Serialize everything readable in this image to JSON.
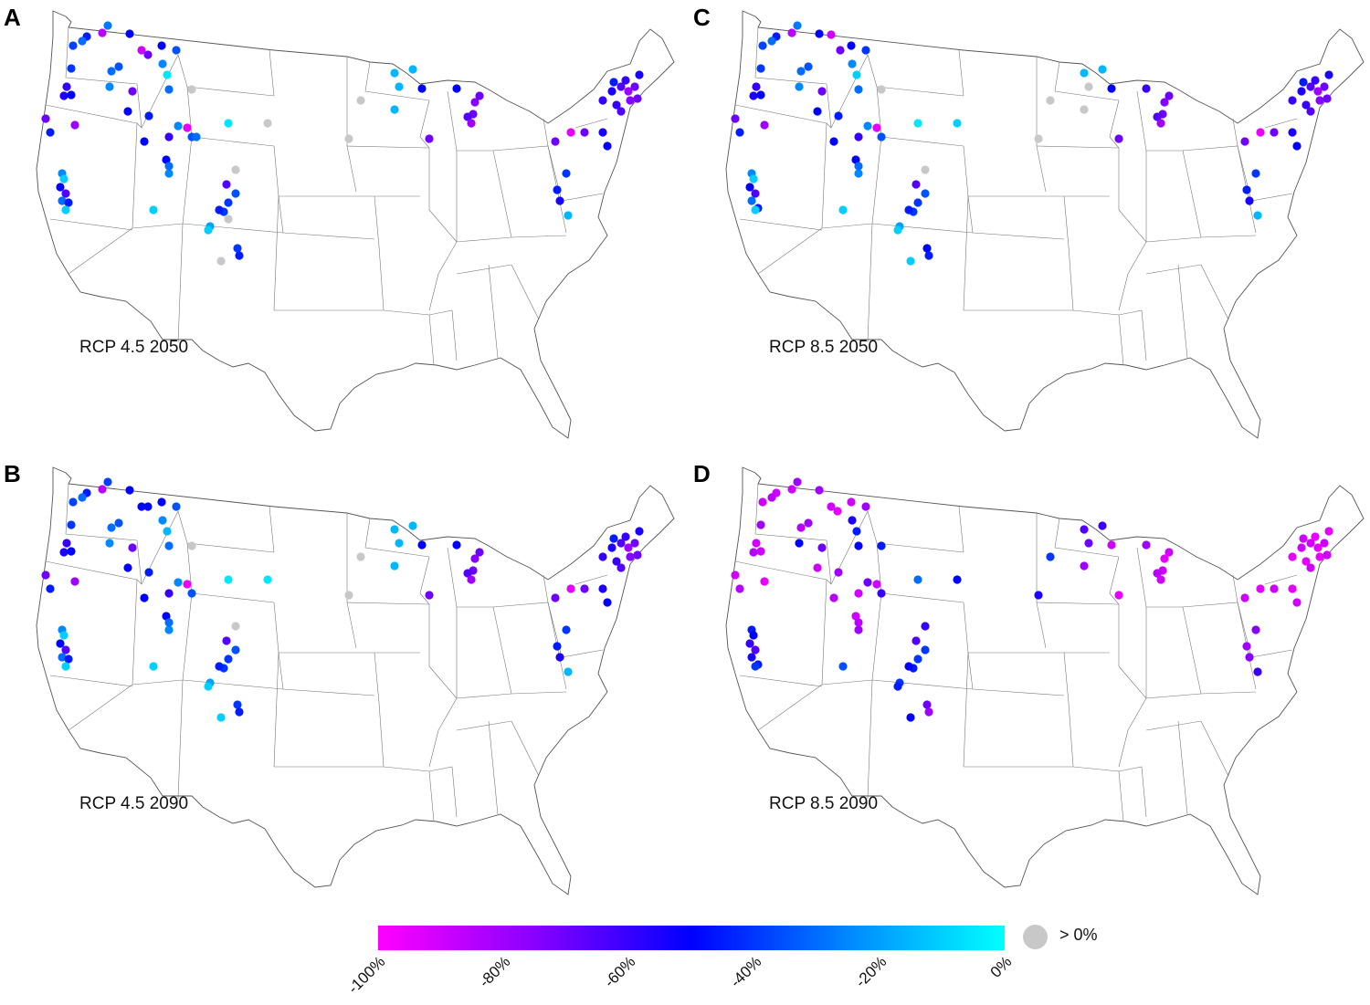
{
  "panels": [
    {
      "letter": "A",
      "label": "RCP 4.5 2050"
    },
    {
      "letter": "C",
      "label": "RCP 8.5 2050"
    },
    {
      "letter": "B",
      "label": "RCP 4.5 2090"
    },
    {
      "letter": "D",
      "label": "RCP 8.5 2090"
    }
  ],
  "legend": {
    "gradient_colors": [
      "#ff00ff",
      "#8800ff",
      "#0000ff",
      "#0088ff",
      "#00ffff"
    ],
    "tick_labels": [
      "-100%",
      "-80%",
      "-60%",
      "-40%",
      "-20%",
      "0%"
    ],
    "positive_color": "#c8c8c8",
    "positive_label": "> 0%"
  },
  "colors": {
    "map_stroke": "#555555",
    "gradient_low": "#ff00ff",
    "gradient_mid": "#0000ff",
    "gradient_high": "#00ffff",
    "positive": "#c8c8c8"
  }
}
